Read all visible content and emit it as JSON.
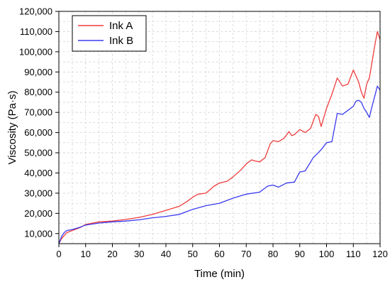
{
  "chart_data": {
    "type": "line",
    "xlabel": "Time (min)",
    "ylabel": "Viscosity (Pa·s)",
    "xlim": [
      0,
      120
    ],
    "ylim": [
      5000,
      120000
    ],
    "x_ticks": [
      0,
      10,
      20,
      30,
      40,
      50,
      60,
      70,
      80,
      90,
      100,
      110,
      120
    ],
    "y_ticks": [
      10000,
      20000,
      30000,
      40000,
      50000,
      60000,
      70000,
      80000,
      90000,
      100000,
      110000,
      120000
    ],
    "y_tick_labels": [
      "10,000",
      "20,000",
      "30,000",
      "40,000",
      "50,000",
      "60,000",
      "70,000",
      "80,000",
      "90,000",
      "100,000",
      "110,000",
      "120,000"
    ],
    "grid": true,
    "legend_position": "top-left",
    "series": [
      {
        "name": "Ink A",
        "color": "#f03c3c",
        "x": [
          0,
          1,
          2,
          3,
          5,
          8,
          10,
          15,
          20,
          25,
          30,
          35,
          40,
          45,
          48,
          50,
          52,
          55,
          58,
          60,
          63,
          65,
          68,
          70,
          72,
          73,
          75,
          77,
          79,
          80,
          82,
          84,
          86,
          87,
          88,
          90,
          92,
          94,
          96,
          97,
          98,
          100,
          102,
          104,
          106,
          108,
          110,
          112,
          113,
          114,
          115,
          116,
          117,
          118,
          119,
          120
        ],
        "y": [
          5000,
          7500,
          9000,
          10500,
          11500,
          13000,
          14500,
          15800,
          16200,
          17000,
          18000,
          19500,
          21500,
          23500,
          26000,
          28000,
          29500,
          30000,
          33500,
          35000,
          36000,
          38000,
          41500,
          44500,
          46500,
          46000,
          45500,
          47500,
          54500,
          56000,
          55500,
          57000,
          60500,
          58500,
          59000,
          61500,
          60000,
          62000,
          69000,
          68000,
          63000,
          72000,
          79000,
          87000,
          83000,
          84000,
          91000,
          85000,
          80000,
          77000,
          84000,
          87000,
          95000,
          103000,
          110000,
          106000
        ]
      },
      {
        "name": "Ink B",
        "color": "#3a3af0",
        "x": [
          0,
          1,
          2,
          3,
          5,
          8,
          10,
          15,
          20,
          25,
          30,
          35,
          40,
          45,
          48,
          50,
          55,
          60,
          65,
          70,
          75,
          78,
          80,
          82,
          85,
          88,
          90,
          92,
          95,
          98,
          100,
          102,
          104,
          106,
          108,
          110,
          111,
          112,
          113,
          114,
          115,
          116,
          117,
          118,
          119,
          120
        ],
        "y": [
          5000,
          8500,
          10500,
          11500,
          12000,
          13200,
          14200,
          15200,
          15800,
          16200,
          16800,
          17800,
          18500,
          19500,
          21000,
          22000,
          23800,
          25000,
          27500,
          29500,
          30500,
          33500,
          34000,
          33000,
          35000,
          35500,
          40500,
          41000,
          47500,
          51500,
          55000,
          55500,
          69500,
          69000,
          71000,
          73000,
          75500,
          76000,
          75000,
          72000,
          70000,
          67500,
          73000,
          78000,
          83000,
          81000
        ]
      }
    ]
  }
}
